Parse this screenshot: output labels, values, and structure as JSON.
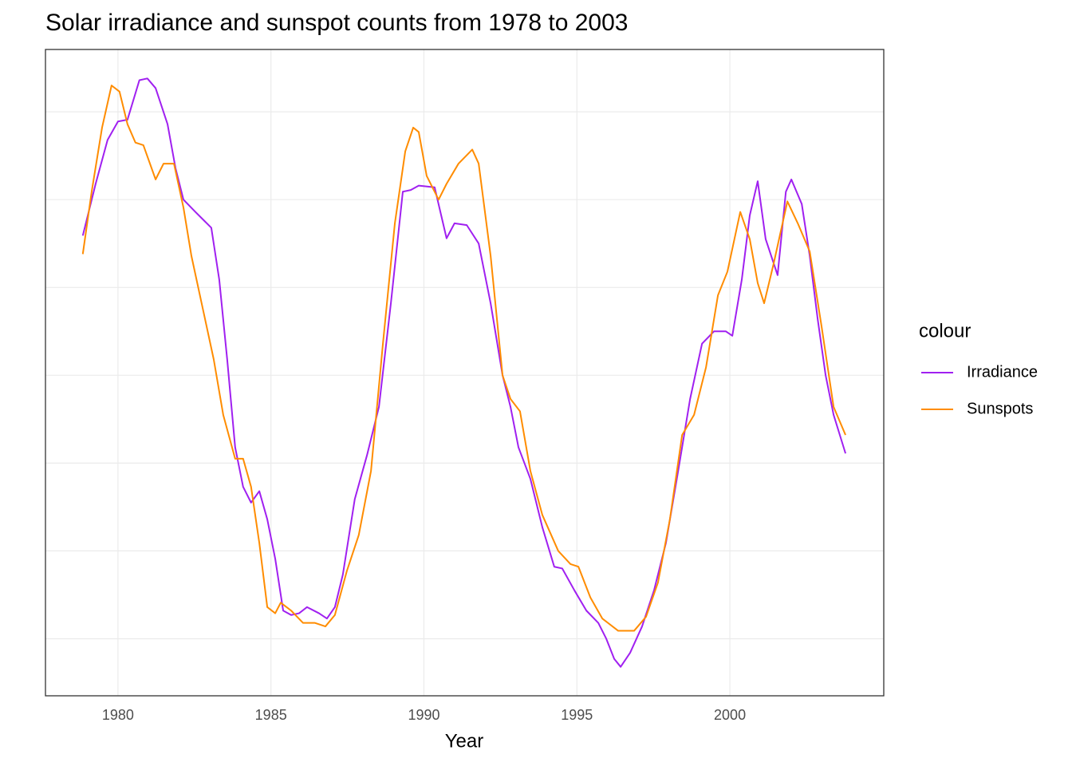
{
  "chart_data": {
    "type": "line",
    "title": "Solar irradiance and sunspot counts from 1978 to 2003",
    "xlabel": "Year",
    "legend_title": "colour",
    "xlim": [
      1977.63,
      2005.03
    ],
    "xticks": [
      1980,
      1985,
      1990,
      1995,
      2000
    ],
    "ylim": [
      -0.65,
      6.71
    ],
    "ygrid": [
      0,
      1,
      2,
      3,
      4,
      5,
      6
    ],
    "grid": true,
    "series": [
      {
        "name": "Irradiance",
        "color": "#a020f0",
        "x": [
          1978.85,
          1979.27,
          1979.66,
          1980.0,
          1980.31,
          1980.7,
          1980.96,
          1981.23,
          1981.62,
          1981.88,
          1982.14,
          1982.53,
          1982.79,
          1983.05,
          1983.31,
          1983.57,
          1983.83,
          1984.09,
          1984.35,
          1984.62,
          1984.88,
          1985.14,
          1985.4,
          1985.66,
          1985.92,
          1986.18,
          1986.57,
          1986.83,
          1987.09,
          1987.35,
          1987.74,
          1988.14,
          1988.53,
          1988.92,
          1989.31,
          1989.57,
          1989.83,
          1990.35,
          1990.74,
          1991.0,
          1991.4,
          1991.79,
          1992.18,
          1992.57,
          1992.83,
          1993.09,
          1993.48,
          1993.87,
          1994.26,
          1994.52,
          1994.92,
          1995.31,
          1995.7,
          1995.96,
          1996.22,
          1996.43,
          1996.74,
          1997.13,
          1997.52,
          1997.91,
          1998.31,
          1998.7,
          1999.09,
          1999.48,
          1999.87,
          2000.08,
          2000.39,
          2000.65,
          2000.91,
          2001.17,
          2001.56,
          2001.83,
          2002.01,
          2002.35,
          2002.61,
          2002.87,
          2003.13,
          2003.39,
          2003.78
        ],
        "values": [
          4.59,
          5.18,
          5.68,
          5.89,
          5.91,
          6.36,
          6.38,
          6.27,
          5.86,
          5.36,
          5.0,
          4.86,
          4.77,
          4.68,
          4.09,
          3.18,
          2.18,
          1.73,
          1.55,
          1.68,
          1.36,
          0.91,
          0.32,
          0.27,
          0.29,
          0.36,
          0.29,
          0.23,
          0.36,
          0.73,
          1.59,
          2.09,
          2.64,
          3.82,
          5.09,
          5.11,
          5.16,
          5.14,
          4.56,
          4.73,
          4.71,
          4.5,
          3.82,
          3.0,
          2.64,
          2.18,
          1.82,
          1.27,
          0.82,
          0.8,
          0.55,
          0.32,
          0.18,
          0.0,
          -0.23,
          -0.32,
          -0.16,
          0.14,
          0.55,
          1.09,
          1.91,
          2.73,
          3.36,
          3.5,
          3.5,
          3.45,
          4.09,
          4.82,
          5.21,
          4.55,
          4.14,
          5.09,
          5.23,
          4.95,
          4.36,
          3.64,
          3.0,
          2.55,
          2.11
        ]
      },
      {
        "name": "Sunspots",
        "color": "#ff8c00",
        "x": [
          1978.85,
          1979.14,
          1979.48,
          1979.79,
          1980.05,
          1980.31,
          1980.57,
          1980.83,
          1981.23,
          1981.49,
          1981.83,
          1982.14,
          1982.4,
          1982.79,
          1983.13,
          1983.44,
          1983.83,
          1984.09,
          1984.35,
          1984.62,
          1984.88,
          1985.14,
          1985.32,
          1985.66,
          1986.05,
          1986.44,
          1986.78,
          1987.09,
          1987.48,
          1987.87,
          1988.27,
          1988.66,
          1989.05,
          1989.39,
          1989.65,
          1989.83,
          1990.09,
          1990.48,
          1990.74,
          1991.13,
          1991.58,
          1991.79,
          1992.18,
          1992.57,
          1992.83,
          1993.14,
          1993.48,
          1993.87,
          1994.39,
          1994.79,
          1995.05,
          1995.44,
          1995.83,
          1996.35,
          1996.87,
          1997.26,
          1997.65,
          1998.04,
          1998.44,
          1998.83,
          1999.22,
          1999.61,
          1999.92,
          2000.34,
          2000.65,
          2000.91,
          2001.12,
          2001.43,
          2001.88,
          2002.22,
          2002.61,
          2003.0,
          2003.39,
          2003.78
        ],
        "values": [
          4.38,
          5.09,
          5.82,
          6.3,
          6.23,
          5.86,
          5.65,
          5.62,
          5.23,
          5.41,
          5.41,
          4.91,
          4.36,
          3.73,
          3.18,
          2.55,
          2.05,
          2.05,
          1.73,
          1.09,
          0.36,
          0.29,
          0.41,
          0.32,
          0.18,
          0.18,
          0.14,
          0.27,
          0.77,
          1.18,
          1.91,
          3.36,
          4.73,
          5.55,
          5.82,
          5.77,
          5.27,
          5.0,
          5.18,
          5.41,
          5.57,
          5.41,
          4.36,
          3.0,
          2.73,
          2.59,
          1.91,
          1.41,
          1.0,
          0.85,
          0.82,
          0.47,
          0.23,
          0.09,
          0.09,
          0.25,
          0.64,
          1.36,
          2.32,
          2.55,
          3.09,
          3.91,
          4.18,
          4.86,
          4.55,
          4.05,
          3.82,
          4.27,
          4.98,
          4.73,
          4.41,
          3.55,
          2.64,
          2.32
        ]
      }
    ]
  }
}
